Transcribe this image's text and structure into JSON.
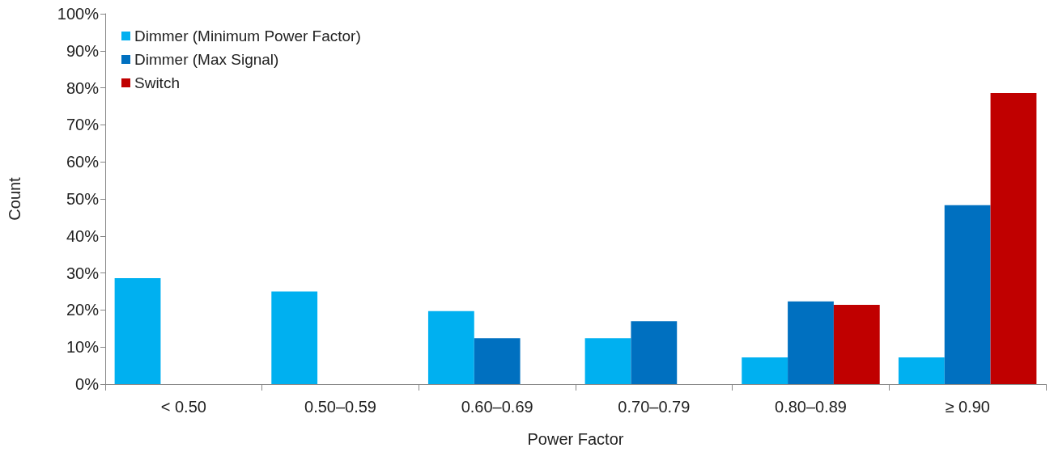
{
  "chart_data": {
    "type": "bar",
    "xlabel": "Power Factor",
    "ylabel": "Count",
    "categories": [
      "< 0.50",
      "0.50–0.59",
      "0.60–0.69",
      "0.70–0.79",
      "0.80–0.89",
      "≥ 0.90"
    ],
    "series": [
      {
        "name": "Dimmer (Minimum Power Factor)",
        "color": "#00b0f0",
        "values": [
          28.6,
          25,
          19.7,
          12.4,
          7.2,
          7.2
        ]
      },
      {
        "name": "Dimmer (Max Signal)",
        "color": "#0070c0",
        "values": [
          null,
          null,
          12.4,
          17,
          22.3,
          48.3
        ]
      },
      {
        "name": "Switch",
        "color": "#c00000",
        "values": [
          null,
          null,
          null,
          null,
          21.4,
          78.6
        ]
      }
    ],
    "ylim": [
      0,
      100
    ],
    "yticks": [
      {
        "value": 0,
        "label": "0%"
      },
      {
        "value": 10,
        "label": "10%"
      },
      {
        "value": 20,
        "label": "20%"
      },
      {
        "value": 30,
        "label": "30%"
      },
      {
        "value": 40,
        "label": "40%"
      },
      {
        "value": 50,
        "label": "50%"
      },
      {
        "value": 60,
        "label": "60%"
      },
      {
        "value": 70,
        "label": "70%"
      },
      {
        "value": 80,
        "label": "80%"
      },
      {
        "value": 90,
        "label": "90%"
      },
      {
        "value": 100,
        "label": "100%"
      }
    ],
    "grid": false,
    "legend": "top left"
  }
}
